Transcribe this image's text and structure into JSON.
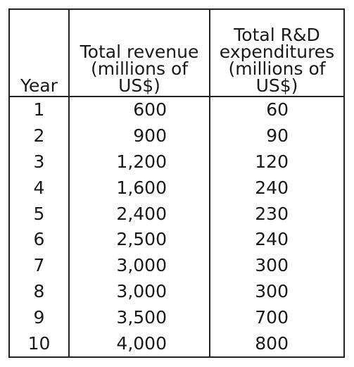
{
  "chart_data": {
    "type": "table",
    "columns": [
      {
        "lines": [
          "Year"
        ]
      },
      {
        "lines": [
          "Total revenue",
          "(millions of",
          "US$)"
        ]
      },
      {
        "lines": [
          "Total R&D",
          "expenditures",
          "(millions of",
          "US$)"
        ]
      }
    ],
    "rows": [
      {
        "year": "1",
        "revenue": "600",
        "rd": "60"
      },
      {
        "year": "2",
        "revenue": "900",
        "rd": "90"
      },
      {
        "year": "3",
        "revenue": "1,200",
        "rd": "120"
      },
      {
        "year": "4",
        "revenue": "1,600",
        "rd": "240"
      },
      {
        "year": "5",
        "revenue": "2,400",
        "rd": "230"
      },
      {
        "year": "6",
        "revenue": "2,500",
        "rd": "240"
      },
      {
        "year": "7",
        "revenue": "3,000",
        "rd": "300"
      },
      {
        "year": "8",
        "revenue": "3,000",
        "rd": "300"
      },
      {
        "year": "9",
        "revenue": "3,500",
        "rd": "700"
      },
      {
        "year": "10",
        "revenue": "4,000",
        "rd": "800"
      }
    ]
  }
}
